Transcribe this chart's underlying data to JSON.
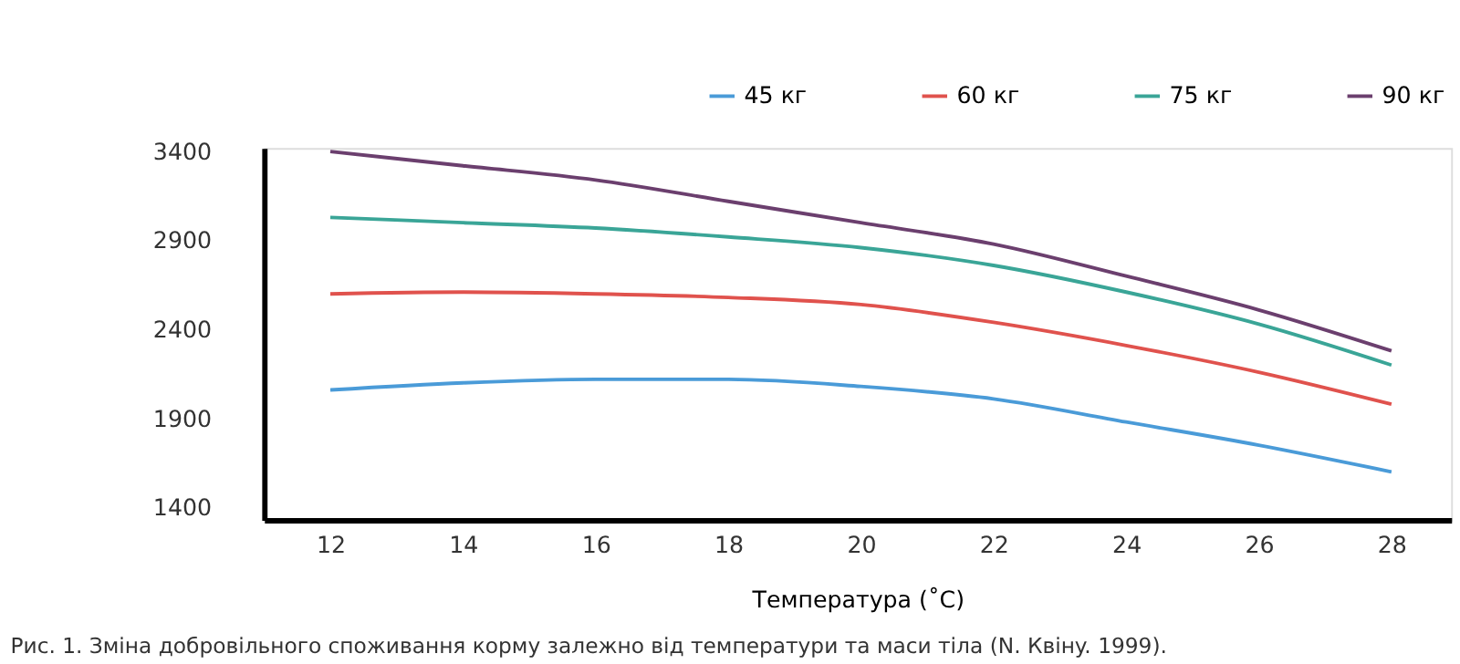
{
  "chart_data": {
    "type": "line",
    "xlabel": "Температура (˚C)",
    "x": [
      12,
      14,
      16,
      18,
      20,
      22,
      24,
      26,
      28
    ],
    "series": [
      {
        "name": "45 кг",
        "color": "#4a9bd8",
        "values": [
          2060,
          2100,
          2120,
          2120,
          2080,
          2010,
          1880,
          1750,
          1600
        ]
      },
      {
        "name": "60 кг",
        "color": "#e0524d",
        "values": [
          2600,
          2610,
          2600,
          2580,
          2540,
          2440,
          2310,
          2160,
          1980
        ]
      },
      {
        "name": "75 кг",
        "color": "#3aa597",
        "values": [
          3030,
          3000,
          2970,
          2920,
          2860,
          2760,
          2610,
          2430,
          2200
        ]
      },
      {
        "name": "90 кг",
        "color": "#6b3f6e",
        "values": [
          3400,
          3320,
          3240,
          3120,
          3000,
          2880,
          2700,
          2510,
          2280
        ]
      }
    ],
    "xlim": [
      11,
      28.9
    ],
    "xticks": [
      12,
      14,
      16,
      18,
      20,
      22,
      24,
      26,
      28
    ],
    "ylim": [
      1330,
      3420
    ],
    "yticks": [
      1400,
      1900,
      2400,
      2900,
      3400
    ],
    "grid": false,
    "legend": "top right",
    "marker": "none",
    "line_style": "solid",
    "annotations": [
      "Рис. 1. Зміна добровільного споживання корму залежно від температури та маси тіла (N. Квінy. 1999)."
    ]
  }
}
